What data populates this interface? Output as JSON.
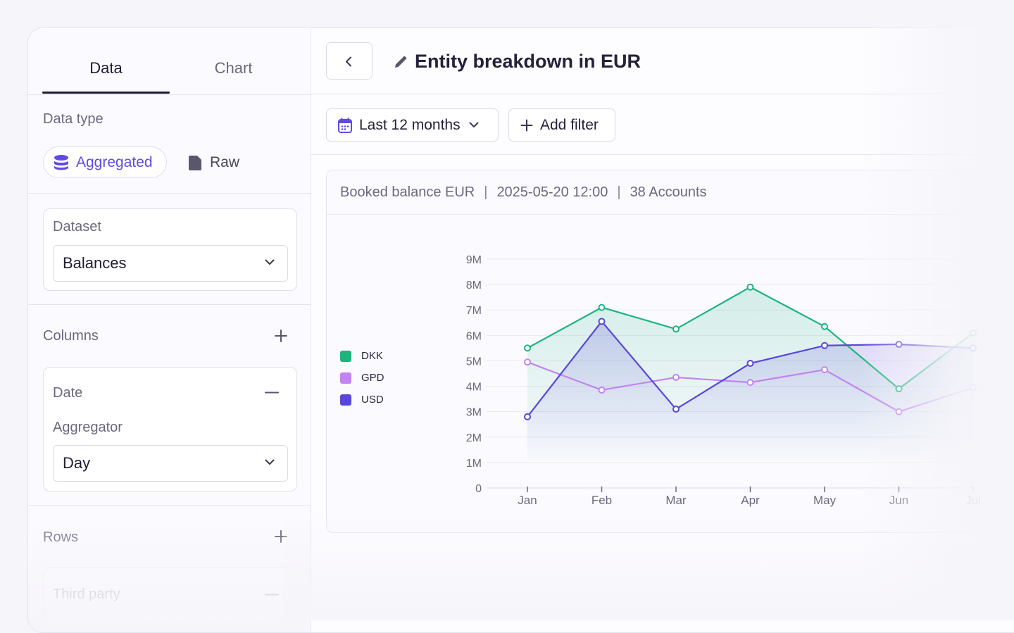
{
  "sidebar": {
    "tabs": [
      {
        "label": "Data",
        "active": true
      },
      {
        "label": "Chart",
        "active": false
      }
    ],
    "data_type_label": "Data type",
    "data_type_options": [
      {
        "label": "Aggregated",
        "icon": "database-icon",
        "selected": true
      },
      {
        "label": "Raw",
        "icon": "file-icon",
        "selected": false
      }
    ],
    "dataset": {
      "label": "Dataset",
      "value": "Balances"
    },
    "columns": {
      "label": "Columns",
      "date_card": {
        "label": "Date",
        "aggregator_label": "Aggregator",
        "aggregator_value": "Day"
      }
    },
    "rows": {
      "label": "Rows",
      "first_item": "Third party"
    }
  },
  "main": {
    "title": "Entity breakdown in EUR",
    "date_range": "Last 12 months",
    "add_filter": "Add filter",
    "chart_header": {
      "metric": "Booked balance EUR",
      "timestamp": "2025-05-20 12:00",
      "accounts": "38 Accounts"
    }
  },
  "colors": {
    "accent": "#5f4be3",
    "dkk": "#1eb47e",
    "gpd": "#c184f0",
    "usd": "#5a46d8"
  },
  "chart_data": {
    "type": "line",
    "title": "Booked balance EUR",
    "categories": [
      "Jan",
      "Feb",
      "Mar",
      "Apr",
      "May",
      "Jun",
      "Jul"
    ],
    "y_ticks": [
      "0",
      "1M",
      "2M",
      "3M",
      "4M",
      "5M",
      "6M",
      "7M",
      "8M",
      "9M"
    ],
    "ylim": [
      0,
      9000000
    ],
    "legend": [
      "DKK",
      "GPD",
      "USD"
    ],
    "series": [
      {
        "name": "DKK",
        "values": [
          5500000,
          7100000,
          6250000,
          7900000,
          6350000,
          3900000,
          6100000
        ]
      },
      {
        "name": "GPD",
        "values": [
          4950000,
          3850000,
          4350000,
          4150000,
          4650000,
          3000000,
          3950000
        ]
      },
      {
        "name": "USD",
        "values": [
          2800000,
          6550000,
          3100000,
          4900000,
          5600000,
          5650000,
          5500000
        ]
      }
    ]
  }
}
